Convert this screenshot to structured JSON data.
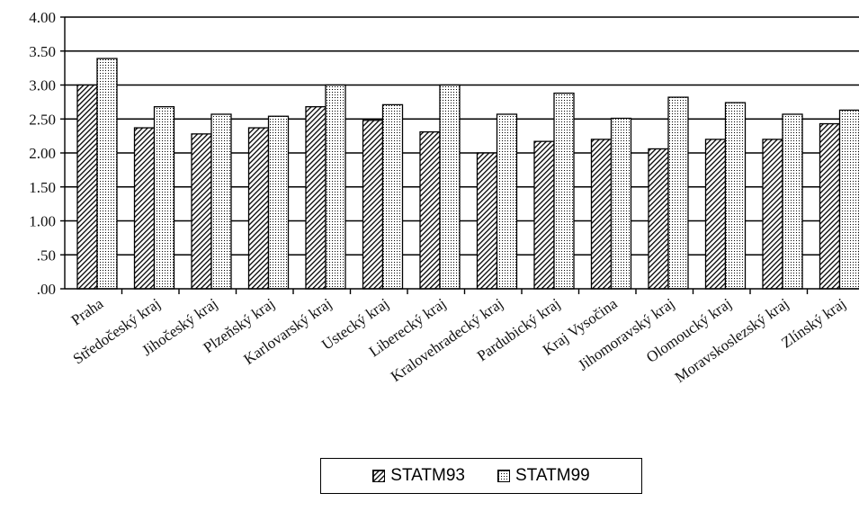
{
  "chart_data": {
    "type": "bar",
    "categories": [
      "Praha",
      "Středočeský kraj",
      "Jihočeský kraj",
      "Plzeňský kraj",
      "Karlovarský kraj",
      "Ustecký kraj",
      "Liberecký kraj",
      "Kralovehradecký kraj",
      "Pardubický kraj",
      "Kraj Vysočina",
      "Jihomoravský kraj",
      "Olomoucký kraj",
      "Moravskoslezský kraj",
      "Zlínský kraj"
    ],
    "series": [
      {
        "name": "STATM93",
        "pattern": "diagonal-hatch",
        "values": [
          3.0,
          2.37,
          2.28,
          2.37,
          2.68,
          2.48,
          2.31,
          2.0,
          2.17,
          2.2,
          2.06,
          2.2,
          2.2,
          2.43
        ]
      },
      {
        "name": "STATM99",
        "pattern": "dotted",
        "values": [
          3.39,
          2.68,
          2.57,
          2.54,
          3.0,
          2.71,
          3.0,
          2.57,
          2.88,
          2.51,
          2.82,
          2.74,
          2.57,
          2.63
        ]
      }
    ],
    "yticks": [
      "4.00",
      "3.50",
      "3.00",
      "2.50",
      "2.00",
      "1.50",
      "1.00",
      ".50",
      ".00"
    ],
    "ylim": [
      0,
      4
    ],
    "grid": true,
    "legend_position": "bottom",
    "colors": {
      "bar_fill": "#ffffff",
      "bar_stroke": "#000000",
      "gridline": "#000000"
    }
  }
}
